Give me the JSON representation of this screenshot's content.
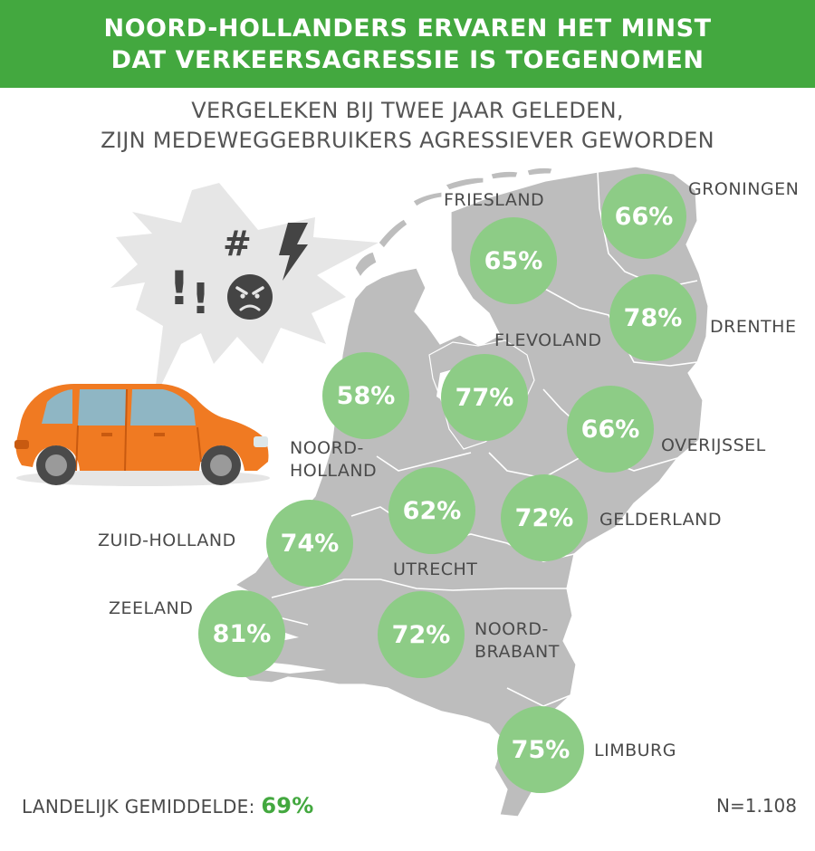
{
  "header": {
    "title_line1": "NOORD-HOLLANDERS ERVAREN HET MINST",
    "title_line2": "DAT VERKEERSAGRESSIE IS TOEGENOMEN"
  },
  "subheader": {
    "line1": "VERGELEKEN BIJ TWEE JAAR GELEDEN,",
    "line2": "ZIJN MEDEWEGGEBRUIKERS AGRESSIEVER GEWORDEN"
  },
  "speech_bubble": {
    "symbols": [
      "!",
      "!",
      "#"
    ]
  },
  "provinces": [
    {
      "key": "groningen",
      "name_lines": [
        "GRONINGEN"
      ],
      "value": "66%"
    },
    {
      "key": "friesland",
      "name_lines": [
        "FRIESLAND"
      ],
      "value": "65%"
    },
    {
      "key": "drenthe",
      "name_lines": [
        "DRENTHE"
      ],
      "value": "78%"
    },
    {
      "key": "flevoland",
      "name_lines": [
        "FLEVOLAND"
      ],
      "value": "77%"
    },
    {
      "key": "noord-holland",
      "name_lines": [
        "NOORD-",
        "HOLLAND"
      ],
      "value": "58%"
    },
    {
      "key": "overijssel",
      "name_lines": [
        "OVERIJSSEL"
      ],
      "value": "66%"
    },
    {
      "key": "utrecht",
      "name_lines": [
        "UTRECHT"
      ],
      "value": "62%"
    },
    {
      "key": "gelderland",
      "name_lines": [
        "GELDERLAND"
      ],
      "value": "72%"
    },
    {
      "key": "zuid-holland",
      "name_lines": [
        "ZUID-HOLLAND"
      ],
      "value": "74%"
    },
    {
      "key": "zeeland",
      "name_lines": [
        "ZEELAND"
      ],
      "value": "81%"
    },
    {
      "key": "noord-brabant",
      "name_lines": [
        "NOORD-",
        "BRABANT"
      ],
      "value": "72%"
    },
    {
      "key": "limburg",
      "name_lines": [
        "LIMBURG"
      ],
      "value": "75%"
    }
  ],
  "footer": {
    "average_label": "LANDELIJK GEMIDDELDE:",
    "average_value": "69%",
    "sample_size": "N=1.108"
  },
  "colors": {
    "banner": "#43a83f",
    "bubble": "#8dcc86",
    "map": "#bdbdbd",
    "car": "#f07a22",
    "accent_text": "#43a83f"
  },
  "icons": [
    "car-icon",
    "angry-face-icon",
    "lightning-icon",
    "speech-bubble-icon"
  ]
}
